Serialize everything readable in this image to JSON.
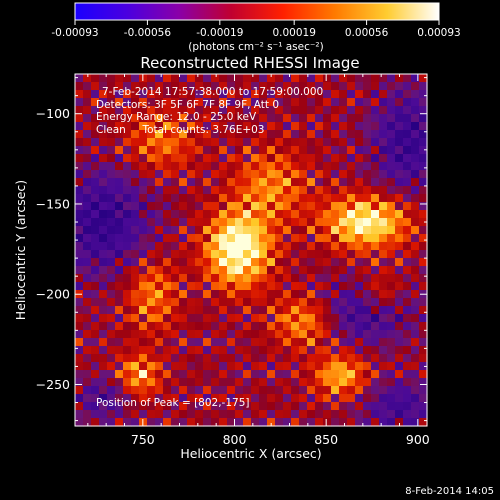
{
  "colorbar": {
    "ticks": [
      "-0.00093",
      "-0.00056",
      "-0.00019",
      "0.00019",
      "0.00056",
      "0.00093"
    ],
    "tick_values": [
      -0.00093,
      -0.00056,
      -0.00019,
      0.00019,
      0.00056,
      0.00093
    ],
    "range": [
      -0.00093,
      0.00093
    ],
    "colors": [
      "#1a00ff",
      "#4a00e0",
      "#8a00a8",
      "#c00030",
      "#ff2000",
      "#ff7a00",
      "#ffcc30",
      "#ffffff"
    ]
  },
  "chart_data": {
    "type": "heatmap",
    "title": "Reconstructed RHESSI Image",
    "xlabel": "Heliocentric X (arcsec)",
    "ylabel": "Heliocentric Y (arcsec)",
    "xlim": [
      713,
      905
    ],
    "ylim": [
      -273,
      -78
    ],
    "x_ticks": [
      750,
      800,
      850,
      900
    ],
    "y_ticks": [
      -100,
      -150,
      -200,
      -250
    ],
    "unit_label": "(photons cm⁻² s⁻¹ asec⁻²)",
    "sources": [
      {
        "x": 802,
        "y": -175,
        "intensity": 1.0,
        "sx": 12,
        "sy": 14
      },
      {
        "x": 872,
        "y": -160,
        "intensity": 0.85,
        "sx": 16,
        "sy": 10
      },
      {
        "x": 748,
        "y": -245,
        "intensity": 0.55,
        "sx": 8,
        "sy": 8
      },
      {
        "x": 858,
        "y": -245,
        "intensity": 0.6,
        "sx": 10,
        "sy": 8
      },
      {
        "x": 838,
        "y": -215,
        "intensity": 0.5,
        "sx": 12,
        "sy": 10
      },
      {
        "x": 755,
        "y": -200,
        "intensity": 0.45,
        "sx": 10,
        "sy": 14
      },
      {
        "x": 820,
        "y": -140,
        "intensity": 0.45,
        "sx": 14,
        "sy": 14
      },
      {
        "x": 760,
        "y": -115,
        "intensity": 0.4,
        "sx": 14,
        "sy": 12
      },
      {
        "x": 880,
        "y": -200,
        "intensity": 0.4,
        "sx": 8,
        "sy": 8
      }
    ],
    "negative_regions": [
      {
        "x": 728,
        "y": -160,
        "intensity": -0.6,
        "sx": 18,
        "sy": 20
      },
      {
        "x": 895,
        "y": -115,
        "intensity": -0.55,
        "sx": 14,
        "sy": 20
      },
      {
        "x": 872,
        "y": -210,
        "intensity": -0.5,
        "sx": 18,
        "sy": 12
      },
      {
        "x": 890,
        "y": -262,
        "intensity": -0.45,
        "sx": 14,
        "sy": 10
      },
      {
        "x": 728,
        "y": -258,
        "intensity": -0.4,
        "sx": 10,
        "sy": 8
      }
    ]
  },
  "overlay": {
    "time_range": "7-Feb-2014 17:57:38.000 to 17:59:00.000",
    "detectors": "Detectors: 3F 5F 6F 7F 8F 9F, Att 0",
    "energy": "Energy Range: 12.0 - 25.0 keV",
    "clean": "Clean     Total counts: 3.76E+03",
    "peak": "Position of Peak = [802,-175]"
  },
  "footer": {
    "timestamp": "8-Feb-2014 14:05"
  }
}
